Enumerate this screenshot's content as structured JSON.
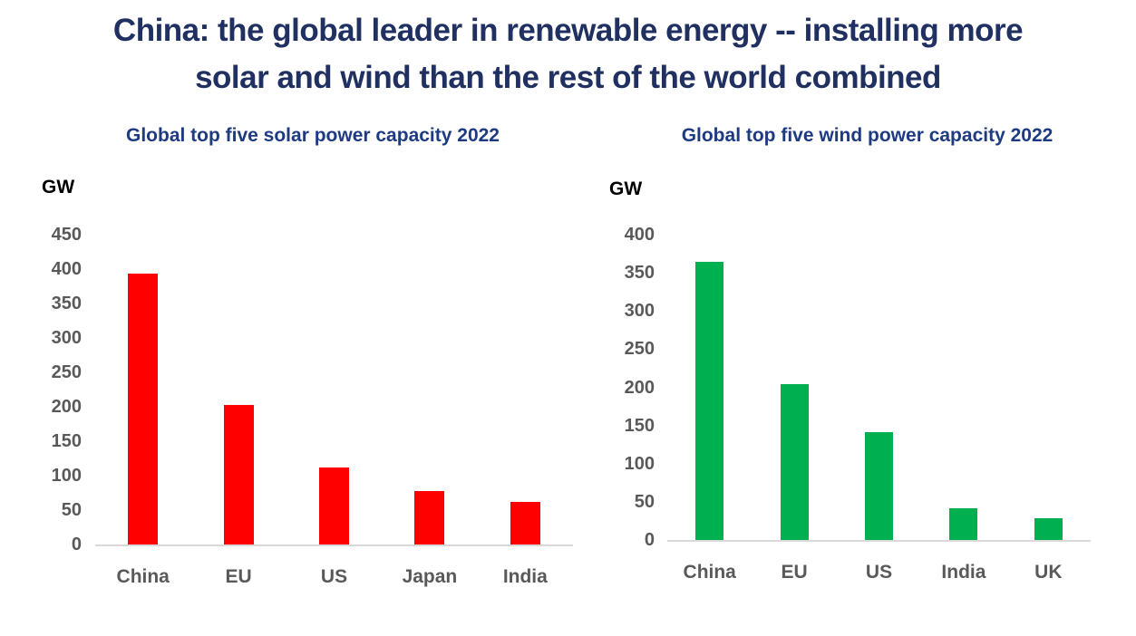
{
  "header": {
    "title_line1": "China: the global leader in renewable energy -- installing more",
    "title_line2": "solar and wind than the rest of the world combined"
  },
  "chart_data": [
    {
      "type": "bar",
      "title": "Global top five solar power capacity 2022",
      "unit_label": "GW",
      "categories": [
        "China",
        "EU",
        "US",
        "Japan",
        "India"
      ],
      "values": [
        393,
        203,
        112,
        78,
        62
      ],
      "ylabel": "GW",
      "xlabel": "",
      "ylim": [
        0,
        450
      ],
      "ytick_step": 50,
      "yticks": [
        450,
        400,
        350,
        300,
        250,
        200,
        150,
        100,
        50,
        0
      ],
      "bar_color": "#FF0000",
      "grid": false,
      "legend": "none"
    },
    {
      "type": "bar",
      "title": "Global top five wind power capacity 2022",
      "unit_label": "GW",
      "categories": [
        "China",
        "EU",
        "US",
        "India",
        "UK"
      ],
      "values": [
        365,
        204,
        141,
        42,
        28
      ],
      "ylabel": "GW",
      "xlabel": "",
      "ylim": [
        0,
        400
      ],
      "ytick_step": 50,
      "yticks": [
        400,
        350,
        300,
        250,
        200,
        150,
        100,
        50,
        0
      ],
      "bar_color": "#00B050",
      "grid": false,
      "legend": "none"
    }
  ],
  "colors": {
    "heading": "#1F3061",
    "chart_title": "#1E3A80",
    "axis_text": "#595959",
    "unit_text": "#000000",
    "axis_line": "#D9D9D9",
    "solar_bar": "#FF0000",
    "wind_bar": "#00B050"
  }
}
